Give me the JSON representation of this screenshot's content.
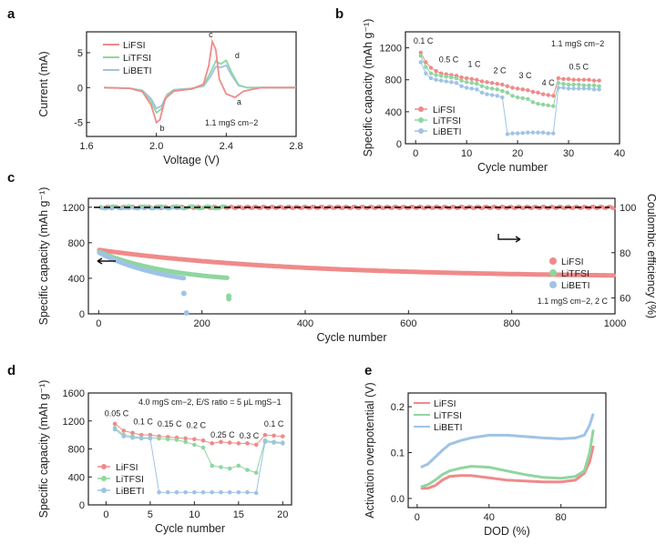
{
  "colors": {
    "LiFSI": "#f08a8a",
    "LiTFSI": "#8fd6a0",
    "LiBETI": "#9fc3e6"
  },
  "chart_data": [
    {
      "id": "a",
      "panel_label": "a",
      "type": "line",
      "xlabel": "Voltage (V)",
      "ylabel": "Current (mA)",
      "xlim": [
        1.6,
        2.8
      ],
      "ylim": [
        -7,
        8
      ],
      "xticks": [
        "1.6",
        "2.0",
        "2.4",
        "2.8"
      ],
      "yticks": [
        "-5",
        "0",
        "5"
      ],
      "legend": [
        "LiFSI",
        "LiTFSI",
        "LiBETI"
      ],
      "annotation": "1.1 mgS cm−2",
      "peak_labels": [
        "a",
        "b",
        "c",
        "d"
      ],
      "series": [
        {
          "name": "LiFSI",
          "x": [
            1.7,
            1.85,
            1.92,
            1.97,
            2.0,
            2.02,
            2.05,
            2.1,
            2.2,
            2.27,
            2.3,
            2.32,
            2.34,
            2.36,
            2.4,
            2.45,
            2.5,
            2.6,
            2.7,
            2.8
          ],
          "y": [
            0,
            -0.1,
            -0.6,
            -2.5,
            -5.0,
            -4.6,
            -1.6,
            -0.5,
            -0.2,
            0.5,
            3.2,
            6.6,
            5.5,
            1.2,
            -0.9,
            -1.4,
            -0.5,
            0,
            0,
            0
          ]
        },
        {
          "name": "LiTFSI",
          "x": [
            1.7,
            1.85,
            1.92,
            1.97,
            2.0,
            2.03,
            2.06,
            2.1,
            2.2,
            2.27,
            2.31,
            2.34,
            2.37,
            2.4,
            2.43,
            2.47,
            2.52,
            2.6,
            2.7,
            2.8
          ],
          "y": [
            0,
            -0.1,
            -0.5,
            -2.0,
            -3.6,
            -3.0,
            -1.2,
            -0.4,
            -0.2,
            0.3,
            2.2,
            3.8,
            3.4,
            3.9,
            2.2,
            0.4,
            0,
            0,
            0,
            0
          ]
        },
        {
          "name": "LiBETI",
          "x": [
            1.7,
            1.85,
            1.92,
            1.97,
            2.0,
            2.03,
            2.06,
            2.1,
            2.2,
            2.27,
            2.31,
            2.34,
            2.37,
            2.4,
            2.43,
            2.47,
            2.52,
            2.6,
            2.7,
            2.8
          ],
          "y": [
            0,
            -0.1,
            -0.4,
            -1.6,
            -3.0,
            -2.6,
            -1.0,
            -0.3,
            -0.1,
            0.2,
            1.6,
            3.0,
            2.9,
            3.2,
            1.8,
            0.3,
            0,
            0,
            0,
            0
          ]
        }
      ]
    },
    {
      "id": "b",
      "panel_label": "b",
      "type": "scatter",
      "xlabel": "Cycle number",
      "ylabel": "Specific capacity (mAh g⁻¹)",
      "xlim": [
        -2,
        40
      ],
      "ylim": [
        0,
        1400
      ],
      "xticks": [
        "0",
        "10",
        "20",
        "30",
        "40"
      ],
      "yticks": [
        "0",
        "400",
        "800",
        "1200"
      ],
      "legend": [
        "LiFSI",
        "LiTFSI",
        "LiBETI"
      ],
      "annotation": "1.1 mgS cm−2",
      "rate_labels": [
        "0.1 C",
        "0.5 C",
        "1 C",
        "2 C",
        "3 C",
        "4 C",
        "0.5 C"
      ],
      "series": [
        {
          "name": "LiFSI",
          "x": [
            1,
            2,
            3,
            4,
            5,
            6,
            7,
            8,
            9,
            10,
            11,
            12,
            13,
            14,
            15,
            16,
            17,
            18,
            19,
            20,
            21,
            22,
            23,
            24,
            25,
            26,
            27,
            28,
            29,
            30,
            31,
            32,
            33,
            34,
            35,
            36
          ],
          "y": [
            1140,
            1020,
            950,
            910,
            880,
            870,
            860,
            850,
            830,
            820,
            810,
            800,
            780,
            770,
            760,
            750,
            740,
            720,
            700,
            690,
            680,
            670,
            650,
            640,
            620,
            610,
            600,
            820,
            810,
            810,
            800,
            800,
            800,
            800,
            790,
            790
          ]
        },
        {
          "name": "LiTFSI",
          "x": [
            1,
            2,
            3,
            4,
            5,
            6,
            7,
            8,
            9,
            10,
            11,
            12,
            13,
            14,
            15,
            16,
            17,
            18,
            19,
            20,
            21,
            22,
            23,
            24,
            25,
            26,
            27,
            28,
            29,
            30,
            31,
            32,
            33,
            34,
            35,
            36
          ],
          "y": [
            1100,
            960,
            880,
            860,
            850,
            840,
            830,
            820,
            790,
            770,
            760,
            750,
            720,
            700,
            690,
            680,
            660,
            640,
            600,
            580,
            570,
            560,
            520,
            500,
            490,
            480,
            470,
            760,
            750,
            740,
            740,
            740,
            730,
            730,
            730,
            720
          ]
        },
        {
          "name": "LiBETI",
          "x": [
            1,
            2,
            3,
            4,
            5,
            6,
            7,
            8,
            9,
            10,
            11,
            12,
            13,
            14,
            15,
            16,
            17,
            18,
            19,
            20,
            21,
            22,
            23,
            24,
            25,
            26,
            27,
            28,
            29,
            30,
            31,
            32,
            33,
            34,
            35,
            36
          ],
          "y": [
            1020,
            880,
            820,
            800,
            790,
            780,
            770,
            760,
            720,
            700,
            690,
            680,
            640,
            620,
            610,
            600,
            580,
            120,
            130,
            130,
            135,
            140,
            140,
            140,
            140,
            130,
            130,
            700,
            700,
            690,
            690,
            690,
            690,
            690,
            680,
            680
          ]
        }
      ]
    },
    {
      "id": "c",
      "panel_label": "c",
      "type": "scatter",
      "xlabel": "Cycle number",
      "ylabel": "Specific capacity (mAh g⁻¹)",
      "ylabel_right": "Coulombic efficiency (%)",
      "xlim": [
        -20,
        1000
      ],
      "ylim": [
        0,
        1300
      ],
      "ylim_right": [
        53,
        104
      ],
      "xticks": [
        "0",
        "200",
        "400",
        "600",
        "800",
        "1000"
      ],
      "yticks": [
        "0",
        "400",
        "800",
        "1200"
      ],
      "yticks_right": [
        "60",
        "80",
        "100"
      ],
      "legend": [
        "LiFSI",
        "LiTFSI",
        "LiBETI"
      ],
      "annotation": "1.1 mgS cm−2, 2 C",
      "series": [
        {
          "name": "LiFSI",
          "capacity_end": 1000,
          "capacity_start": 720,
          "capacity_final": 410,
          "ce": 100
        },
        {
          "name": "LiTFSI",
          "capacity_end": 250,
          "capacity_start": 700,
          "capacity_final": 340,
          "ce": 100
        },
        {
          "name": "LiBETI",
          "capacity_end": 165,
          "capacity_start": 690,
          "capacity_final": 280,
          "ce": 100
        }
      ]
    },
    {
      "id": "d",
      "panel_label": "d",
      "type": "scatter",
      "xlabel": "Cycle number",
      "ylabel": "Specific capacity (mAh g⁻¹)",
      "xlim": [
        -2,
        21
      ],
      "ylim": [
        0,
        1600
      ],
      "xticks": [
        "0",
        "5",
        "10",
        "15",
        "20"
      ],
      "yticks": [
        "0",
        "400",
        "800",
        "1200",
        "1600"
      ],
      "legend": [
        "LiFSI",
        "LiTFSI",
        "LiBETI"
      ],
      "annotation": "4.0 mgS cm−2, E/S ratio = 5 µL mgS−1",
      "rate_labels": [
        "0.05 C",
        "0.1 C",
        "0.15 C",
        "0.2 C",
        "0.25 C",
        "0.3 C",
        "0.1 C"
      ],
      "series": [
        {
          "name": "LiFSI",
          "x": [
            1,
            2,
            3,
            4,
            5,
            6,
            7,
            8,
            9,
            10,
            11,
            12,
            13,
            14,
            15,
            16,
            17,
            18,
            19,
            20
          ],
          "y": [
            1160,
            1060,
            1030,
            1000,
            1000,
            980,
            970,
            960,
            950,
            940,
            920,
            880,
            900,
            890,
            880,
            880,
            860,
            1000,
            990,
            980
          ]
        },
        {
          "name": "LiTFSI",
          "x": [
            1,
            2,
            3,
            4,
            5,
            6,
            7,
            8,
            9,
            10,
            11,
            12,
            13,
            14,
            15,
            16,
            17,
            18,
            19,
            20
          ],
          "y": [
            1100,
            1000,
            980,
            960,
            960,
            950,
            940,
            930,
            900,
            860,
            820,
            560,
            540,
            520,
            560,
            500,
            460,
            920,
            900,
            890
          ]
        },
        {
          "name": "LiBETI",
          "x": [
            1,
            2,
            3,
            4,
            5,
            6,
            7,
            8,
            9,
            10,
            11,
            12,
            13,
            14,
            15,
            16,
            17,
            18,
            19,
            20
          ],
          "y": [
            1080,
            980,
            960,
            950,
            950,
            180,
            180,
            180,
            180,
            180,
            180,
            180,
            180,
            180,
            180,
            180,
            170,
            900,
            890,
            880
          ]
        }
      ]
    },
    {
      "id": "e",
      "panel_label": "e",
      "type": "line",
      "xlabel": "DOD (%)",
      "ylabel": "Activation overpotential (V)",
      "xlim": [
        -5,
        105
      ],
      "ylim": [
        -0.02,
        0.23
      ],
      "xticks": [
        "0",
        "40",
        "80"
      ],
      "yticks": [
        "0.0",
        "0.1",
        "0.2"
      ],
      "legend": [
        "LiFSI",
        "LiTFSI",
        "LiBETI"
      ],
      "series": [
        {
          "name": "LiFSI",
          "x": [
            2,
            6,
            10,
            14,
            18,
            24,
            30,
            40,
            50,
            60,
            70,
            80,
            88,
            93,
            96,
            98
          ],
          "y": [
            0.022,
            0.022,
            0.028,
            0.04,
            0.048,
            0.05,
            0.05,
            0.045,
            0.04,
            0.038,
            0.036,
            0.036,
            0.04,
            0.055,
            0.08,
            0.115
          ]
        },
        {
          "name": "LiTFSI",
          "x": [
            2,
            6,
            10,
            14,
            18,
            24,
            30,
            40,
            50,
            60,
            70,
            80,
            88,
            93,
            96,
            98
          ],
          "y": [
            0.025,
            0.03,
            0.04,
            0.052,
            0.06,
            0.066,
            0.07,
            0.068,
            0.06,
            0.052,
            0.046,
            0.044,
            0.048,
            0.06,
            0.1,
            0.15
          ]
        },
        {
          "name": "LiBETI",
          "x": [
            2,
            6,
            10,
            14,
            18,
            24,
            30,
            40,
            50,
            60,
            70,
            80,
            88,
            93,
            96,
            98
          ],
          "y": [
            0.068,
            0.075,
            0.09,
            0.105,
            0.118,
            0.126,
            0.132,
            0.138,
            0.138,
            0.135,
            0.132,
            0.13,
            0.132,
            0.138,
            0.16,
            0.185
          ]
        }
      ]
    }
  ]
}
